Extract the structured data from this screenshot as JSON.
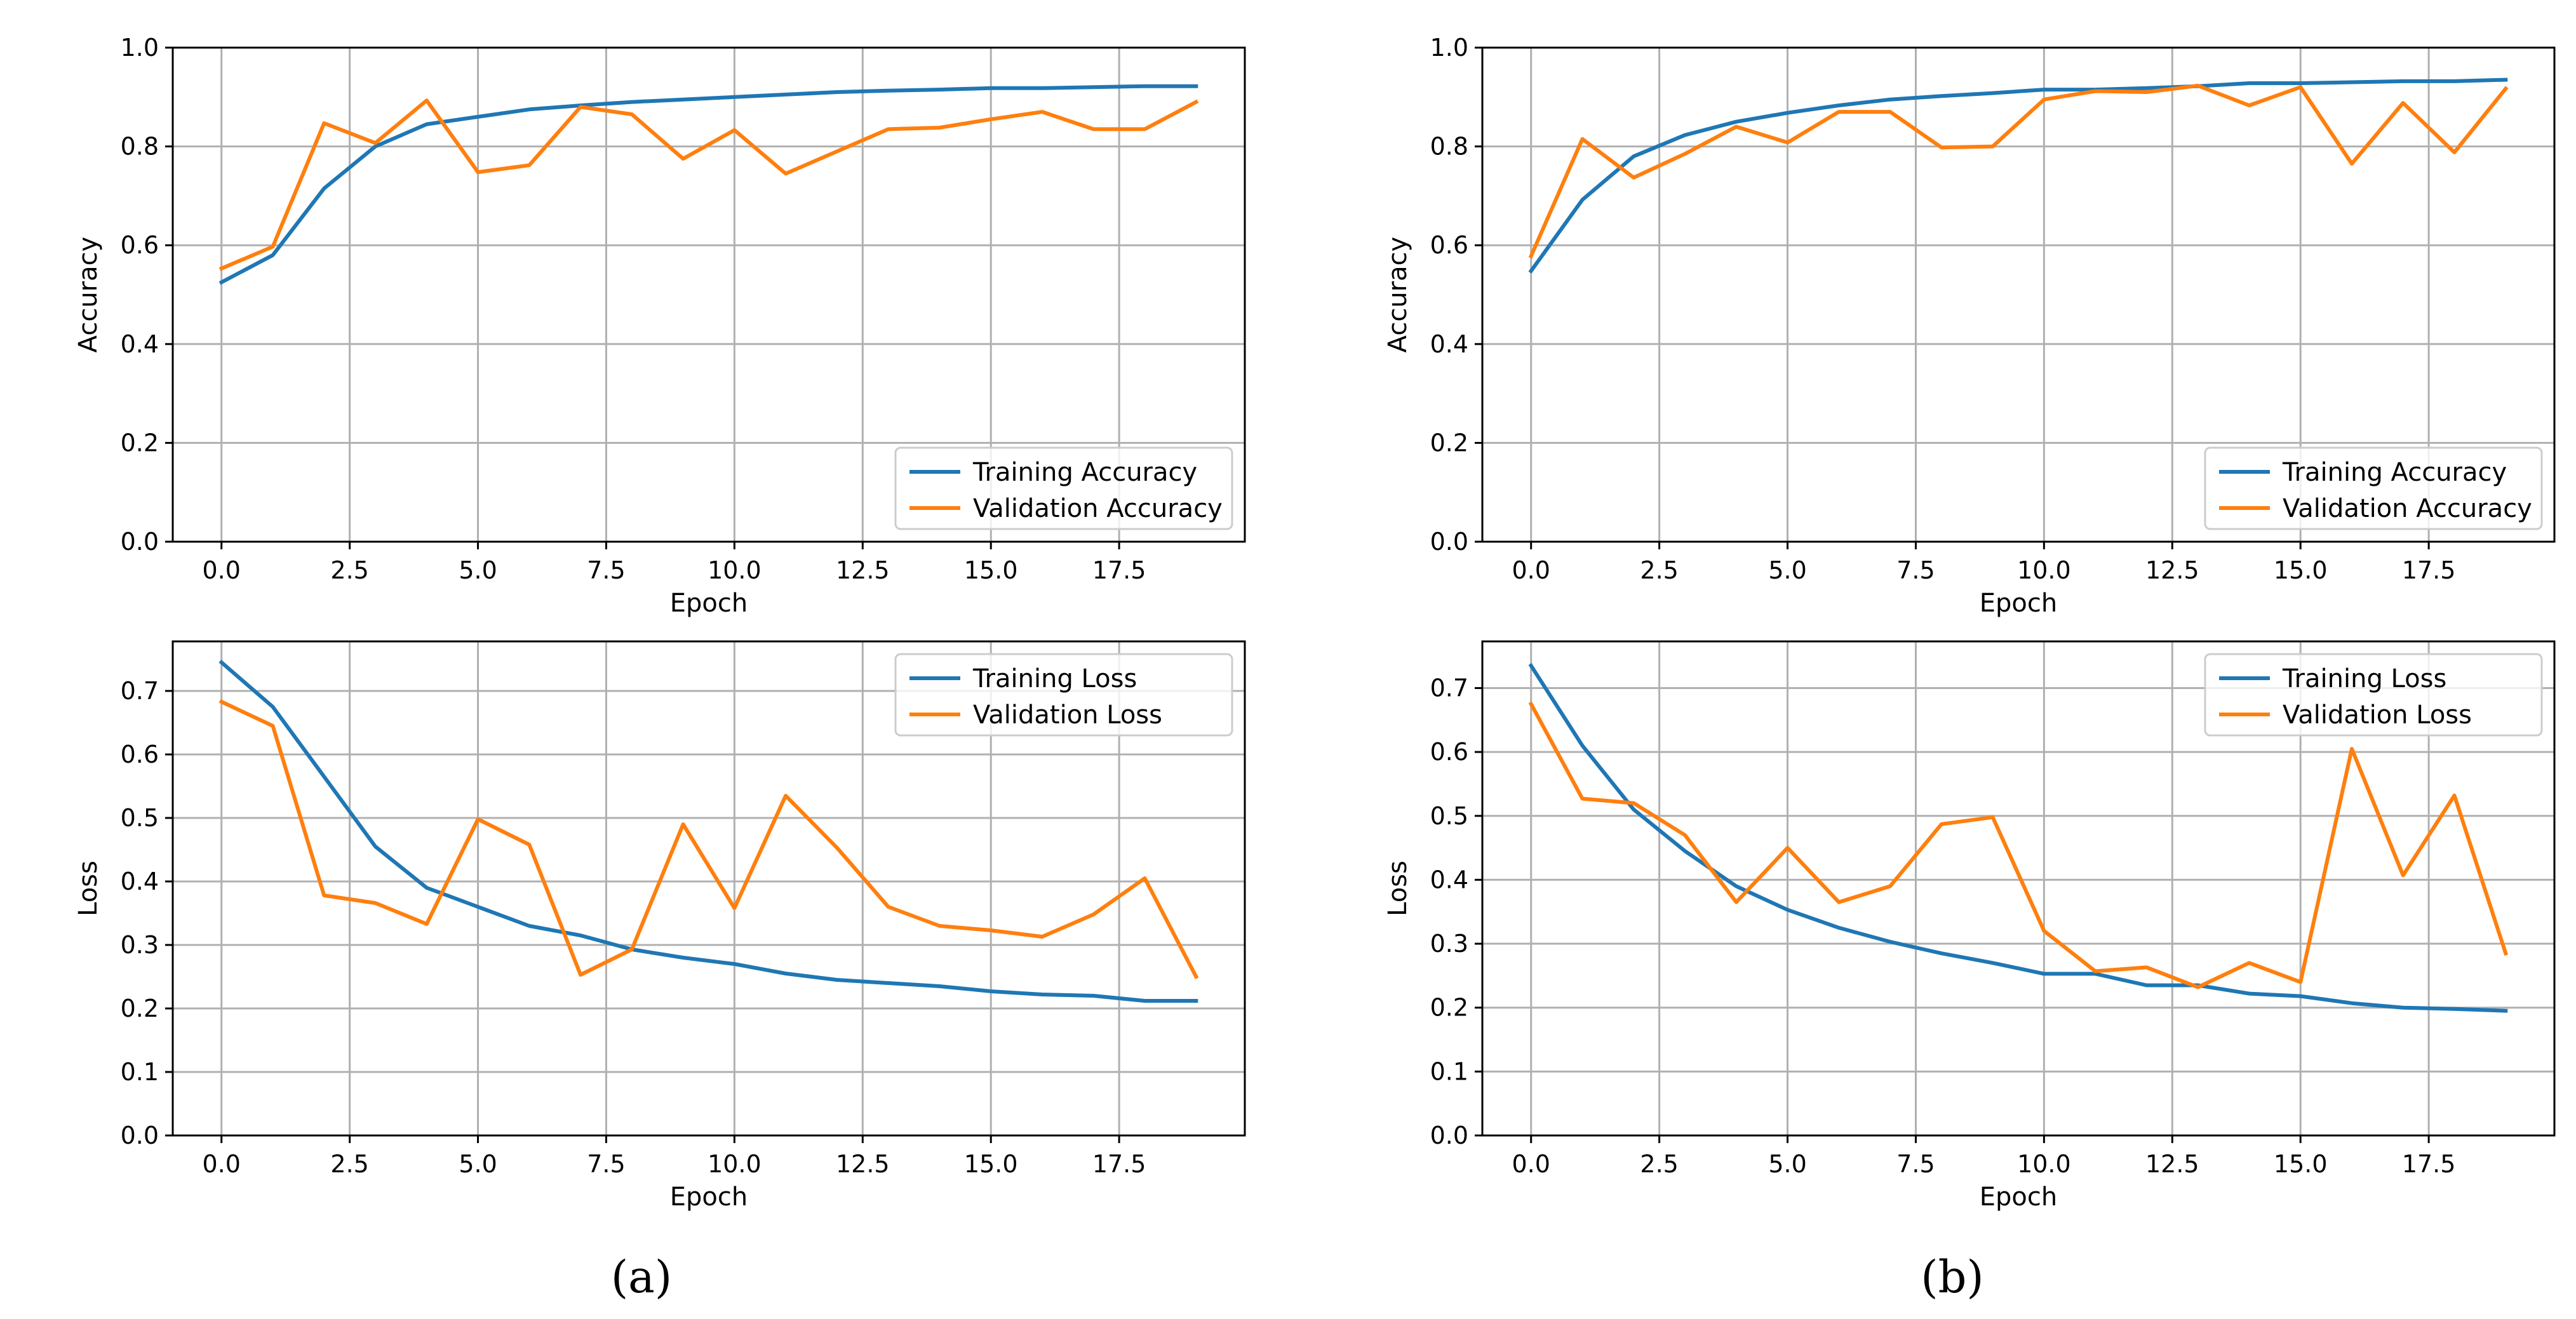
{
  "panel_captions": [
    "(a)",
    "(b)"
  ],
  "colors": {
    "training": "#1f77b4",
    "validation": "#ff7f0e"
  },
  "chart_data": [
    {
      "type": "line",
      "panel": "a",
      "title": "",
      "xlabel": "Epoch",
      "ylabel": "Accuracy",
      "xlim": [
        -0.95,
        19.95
      ],
      "ylim": [
        0.0,
        1.0
      ],
      "xticks": [
        0,
        2.5,
        5,
        7.5,
        10,
        12.5,
        15,
        17.5
      ],
      "xtick_labels": [
        "0.0",
        "2.5",
        "5.0",
        "7.5",
        "10.0",
        "12.5",
        "15.0",
        "17.5"
      ],
      "yticks": [
        0,
        0.2,
        0.4,
        0.6,
        0.8,
        1.0
      ],
      "ytick_labels": [
        "0.0",
        "0.2",
        "0.4",
        "0.6",
        "0.8",
        "1.0"
      ],
      "grid": true,
      "legend_position": "lower-right",
      "x": [
        0,
        1,
        2,
        3,
        4,
        5,
        6,
        7,
        8,
        9,
        10,
        11,
        12,
        13,
        14,
        15,
        16,
        17,
        18,
        19
      ],
      "series": [
        {
          "name": "Training Accuracy",
          "color_key": "training",
          "values": [
            0.525,
            0.58,
            0.715,
            0.8,
            0.845,
            0.86,
            0.875,
            0.883,
            0.89,
            0.895,
            0.9,
            0.905,
            0.91,
            0.913,
            0.915,
            0.918,
            0.918,
            0.92,
            0.922,
            0.922
          ]
        },
        {
          "name": "Validation Accuracy",
          "color_key": "validation",
          "values": [
            0.553,
            0.597,
            0.847,
            0.807,
            0.893,
            0.748,
            0.762,
            0.88,
            0.865,
            0.775,
            0.833,
            0.745,
            0.79,
            0.835,
            0.838,
            0.855,
            0.87,
            0.835,
            0.835,
            0.89
          ]
        }
      ]
    },
    {
      "type": "line",
      "panel": "b",
      "title": "",
      "xlabel": "Epoch",
      "ylabel": "Accuracy",
      "xlim": [
        -0.95,
        19.95
      ],
      "ylim": [
        0.0,
        1.0
      ],
      "xticks": [
        0,
        2.5,
        5,
        7.5,
        10,
        12.5,
        15,
        17.5
      ],
      "xtick_labels": [
        "0.0",
        "2.5",
        "5.0",
        "7.5",
        "10.0",
        "12.5",
        "15.0",
        "17.5"
      ],
      "yticks": [
        0,
        0.2,
        0.4,
        0.6,
        0.8,
        1.0
      ],
      "ytick_labels": [
        "0.0",
        "0.2",
        "0.4",
        "0.6",
        "0.8",
        "1.0"
      ],
      "grid": true,
      "legend_position": "lower-right",
      "x": [
        0,
        1,
        2,
        3,
        4,
        5,
        6,
        7,
        8,
        9,
        10,
        11,
        12,
        13,
        14,
        15,
        16,
        17,
        18,
        19
      ],
      "series": [
        {
          "name": "Training Accuracy",
          "color_key": "training",
          "values": [
            0.548,
            0.692,
            0.78,
            0.823,
            0.85,
            0.868,
            0.883,
            0.895,
            0.902,
            0.908,
            0.915,
            0.915,
            0.918,
            0.922,
            0.928,
            0.928,
            0.93,
            0.932,
            0.932,
            0.935
          ]
        },
        {
          "name": "Validation Accuracy",
          "color_key": "validation",
          "values": [
            0.578,
            0.815,
            0.737,
            0.785,
            0.84,
            0.808,
            0.87,
            0.87,
            0.798,
            0.8,
            0.895,
            0.912,
            0.91,
            0.923,
            0.883,
            0.92,
            0.765,
            0.888,
            0.788,
            0.917
          ]
        }
      ]
    },
    {
      "type": "line",
      "panel": "a",
      "title": "",
      "xlabel": "Epoch",
      "ylabel": "Loss",
      "xlim": [
        -0.95,
        19.95
      ],
      "ylim": [
        0.0,
        0.778
      ],
      "xticks": [
        0,
        2.5,
        5,
        7.5,
        10,
        12.5,
        15,
        17.5
      ],
      "xtick_labels": [
        "0.0",
        "2.5",
        "5.0",
        "7.5",
        "10.0",
        "12.5",
        "15.0",
        "17.5"
      ],
      "yticks": [
        0,
        0.1,
        0.2,
        0.3,
        0.4,
        0.5,
        0.6,
        0.7
      ],
      "ytick_labels": [
        "0.0",
        "0.1",
        "0.2",
        "0.3",
        "0.4",
        "0.5",
        "0.6",
        "0.7"
      ],
      "grid": true,
      "legend_position": "upper-right",
      "x": [
        0,
        1,
        2,
        3,
        4,
        5,
        6,
        7,
        8,
        9,
        10,
        11,
        12,
        13,
        14,
        15,
        16,
        17,
        18,
        19
      ],
      "series": [
        {
          "name": "Training Loss",
          "color_key": "training",
          "values": [
            0.745,
            0.675,
            0.565,
            0.455,
            0.39,
            0.36,
            0.33,
            0.315,
            0.293,
            0.28,
            0.27,
            0.255,
            0.245,
            0.24,
            0.235,
            0.227,
            0.222,
            0.22,
            0.212,
            0.212
          ]
        },
        {
          "name": "Validation Loss",
          "color_key": "validation",
          "values": [
            0.683,
            0.645,
            0.378,
            0.366,
            0.333,
            0.498,
            0.458,
            0.253,
            0.293,
            0.49,
            0.358,
            0.535,
            0.453,
            0.36,
            0.33,
            0.323,
            0.313,
            0.348,
            0.405,
            0.25
          ]
        }
      ]
    },
    {
      "type": "line",
      "panel": "b",
      "title": "",
      "xlabel": "Epoch",
      "ylabel": "Loss",
      "xlim": [
        -0.95,
        19.95
      ],
      "ylim": [
        0.0,
        0.773
      ],
      "xticks": [
        0,
        2.5,
        5,
        7.5,
        10,
        12.5,
        15,
        17.5
      ],
      "xtick_labels": [
        "0.0",
        "2.5",
        "5.0",
        "7.5",
        "10.0",
        "12.5",
        "15.0",
        "17.5"
      ],
      "yticks": [
        0,
        0.1,
        0.2,
        0.3,
        0.4,
        0.5,
        0.6,
        0.7
      ],
      "ytick_labels": [
        "0.0",
        "0.1",
        "0.2",
        "0.3",
        "0.4",
        "0.5",
        "0.6",
        "0.7"
      ],
      "grid": true,
      "legend_position": "upper-right",
      "x": [
        0,
        1,
        2,
        3,
        4,
        5,
        6,
        7,
        8,
        9,
        10,
        11,
        12,
        13,
        14,
        15,
        16,
        17,
        18,
        19
      ],
      "series": [
        {
          "name": "Training Loss",
          "color_key": "training",
          "values": [
            0.735,
            0.61,
            0.51,
            0.445,
            0.39,
            0.353,
            0.325,
            0.303,
            0.285,
            0.27,
            0.253,
            0.253,
            0.235,
            0.235,
            0.222,
            0.218,
            0.207,
            0.2,
            0.198,
            0.195
          ]
        },
        {
          "name": "Validation Loss",
          "color_key": "validation",
          "values": [
            0.675,
            0.527,
            0.52,
            0.47,
            0.365,
            0.45,
            0.365,
            0.39,
            0.487,
            0.498,
            0.32,
            0.257,
            0.263,
            0.232,
            0.27,
            0.24,
            0.605,
            0.407,
            0.532,
            0.285
          ]
        }
      ]
    }
  ]
}
